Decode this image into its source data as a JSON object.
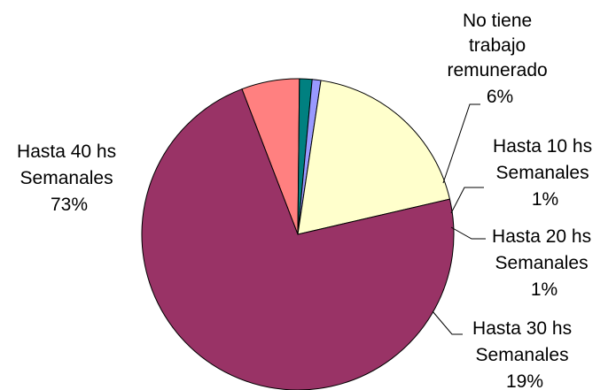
{
  "chart_data": {
    "type": "pie",
    "slices": [
      {
        "label_lines": [
          "No tiene",
          "trabajo",
          "remunerado"
        ],
        "percent_label": "6%",
        "value": 6,
        "color": "#FF8080"
      },
      {
        "label_lines": [
          "Hasta 10 hs",
          "Semanales"
        ],
        "percent_label": "1%",
        "value": 1.3,
        "color": "#008080"
      },
      {
        "label_lines": [
          "Hasta 20 hs",
          "Semanales"
        ],
        "percent_label": "1%",
        "value": 0.9,
        "color": "#9999FF"
      },
      {
        "label_lines": [
          "Hasta 30 hs",
          "Semanales"
        ],
        "percent_label": "19%",
        "value": 19,
        "color": "#FFFFCC"
      },
      {
        "label_lines": [
          "Hasta 40 hs",
          "Semanales"
        ],
        "percent_label": "73%",
        "value": 72.8,
        "color": "#993366"
      }
    ]
  }
}
